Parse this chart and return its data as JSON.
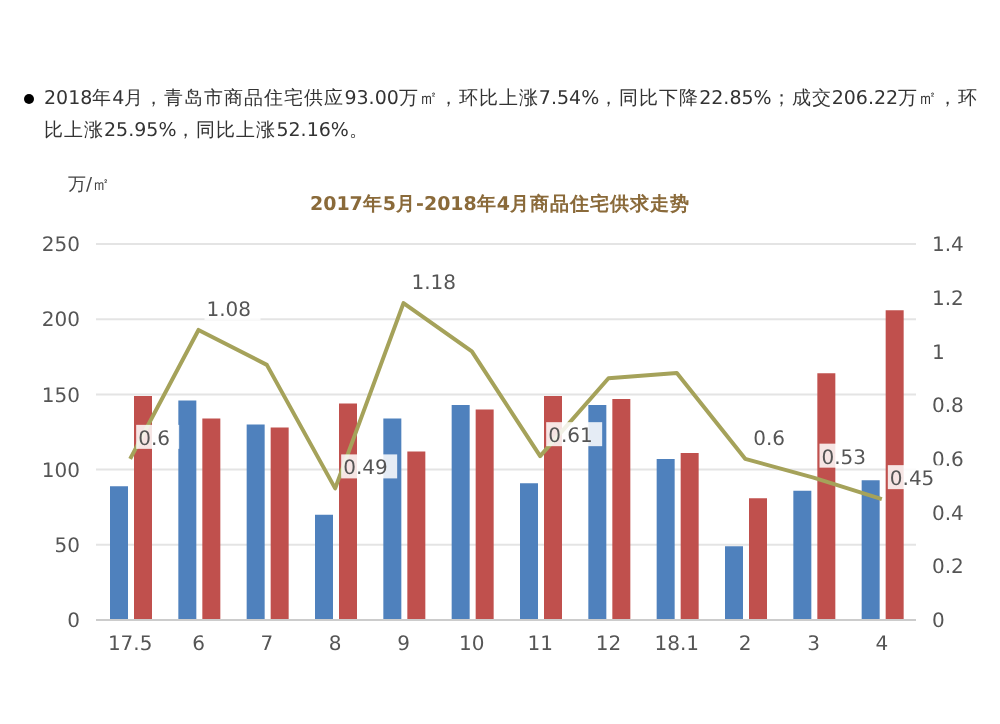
{
  "chart_data": {
    "type": "bar",
    "annotations": [
      "2018年4月，青岛市商品住宅供应93.00万㎡，环比上涨7.54%，同比下降22.85%；成交206.22万㎡，环比上涨25.95%，同比上涨52.16%。"
    ],
    "title": "2017年5月-2018年4月商品住宅供求走势",
    "ylabel": "万/㎡",
    "categories": [
      "17.5",
      "6",
      "7",
      "8",
      "9",
      "10",
      "11",
      "12",
      "18.1",
      "2",
      "3",
      "4"
    ],
    "series": [
      {
        "color": "#4f81bd",
        "values": [
          89,
          146,
          130,
          70,
          134,
          143,
          91,
          143,
          107,
          49,
          86,
          93
        ]
      },
      {
        "type": "bar",
        "color": "#c0504d",
        "values": [
          149,
          134,
          128,
          144,
          112,
          140,
          149,
          147,
          111,
          81,
          164,
          206
        ]
      },
      {
        "type": "line",
        "axis": "y2",
        "color": "#a5a25a",
        "values": [
          0.6,
          1.08,
          0.95,
          0.49,
          1.18,
          1.0,
          0.61,
          0.9,
          0.92,
          0.6,
          0.53,
          0.45
        ],
        "value_labels": [
          "0.6",
          "1.08",
          null,
          "0.49",
          "1.18",
          null,
          "0.61",
          null,
          null,
          "0.6",
          "0.53",
          "0.45"
        ]
      }
    ],
    "ylim": [
      0,
      250
    ],
    "yticks": [
      0,
      50,
      100,
      150,
      200,
      250
    ],
    "y2lim": [
      0,
      1.4
    ],
    "y2ticks": [
      0,
      0.2,
      0.4,
      0.6,
      0.8,
      1,
      1.2,
      1.4
    ],
    "grid": "y",
    "marker": "none",
    "legend": false
  }
}
